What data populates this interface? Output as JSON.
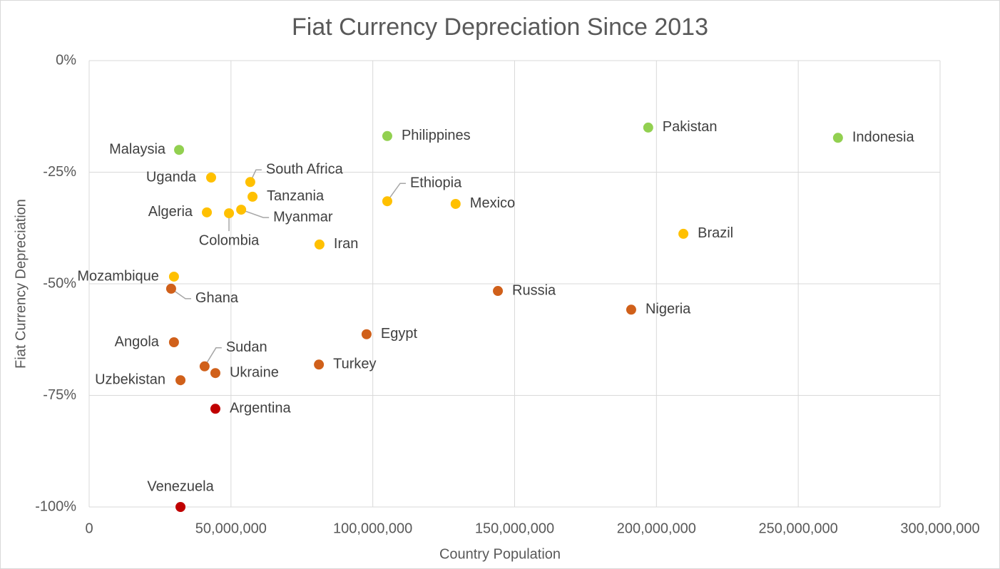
{
  "chart_data": {
    "type": "scatter",
    "title": "Fiat Currency Depreciation Since 2013",
    "x_label": "Country Population",
    "y_label": "Fiat  Currency  Depreciation",
    "labels": [
      "Malaysia",
      "Uganda",
      "South Africa",
      "Tanzania",
      "Algeria",
      "Colombia",
      "Myanmar",
      "Iran",
      "Philippines",
      "Ethiopia",
      "Mexico",
      "Pakistan",
      "Indonesia",
      "Brazil",
      "Mozambique",
      "Ghana",
      "Russia",
      "Nigeria",
      "Egypt",
      "Angola",
      "Sudan",
      "Ukraine",
      "Turkey",
      "Uzbekistan",
      "Argentina",
      "Venezuela"
    ],
    "x": [
      31700000,
      43000000,
      56800000,
      57600000,
      41500000,
      49300000,
      53600000,
      81200000,
      105100000,
      105100000,
      129200000,
      197100000,
      264000000,
      209500000,
      29900000,
      28900000,
      144100000,
      191100000,
      97800000,
      29900000,
      40700000,
      44500000,
      81000000,
      32200000,
      44500000,
      32200000
    ],
    "y": [
      -20.0,
      -26.2,
      -27.2,
      -30.5,
      -34.0,
      -34.2,
      -33.4,
      -41.2,
      -16.9,
      -31.5,
      -32.1,
      -15.0,
      -17.3,
      -38.8,
      -48.4,
      -51.1,
      -51.6,
      -55.8,
      -61.3,
      -63.1,
      -68.5,
      -70.0,
      -68.1,
      -71.6,
      -78.0,
      -100
    ],
    "colors": [
      "#92d050",
      "#ffc000",
      "#ffc000",
      "#ffc000",
      "#ffc000",
      "#ffc000",
      "#ffc000",
      "#ffc000",
      "#92d050",
      "#ffc000",
      "#ffc000",
      "#92d050",
      "#92d050",
      "#ffc000",
      "#ffc000",
      "#d0601a",
      "#d0601a",
      "#d0601a",
      "#d0601a",
      "#d0601a",
      "#d0601a",
      "#d0601a",
      "#d0601a",
      "#d0601a",
      "#c00000",
      "#c00000"
    ],
    "xlim": [
      0,
      300000000
    ],
    "xticks": [
      0,
      {
        "value": 50000000,
        "label": "50,000,000"
      },
      {
        "value": 100000000,
        "label": "100,000,000"
      },
      {
        "value": 150000000,
        "label": "150,000,000"
      },
      {
        "value": 200000000,
        "label": "200,000,000"
      },
      {
        "value": 250000000,
        "label": "250,000,000"
      },
      {
        "value": 300000000,
        "label": "300,000,000"
      }
    ],
    "ylim": [
      -100,
      0
    ],
    "yticks": [
      {
        "value": 0,
        "label": "0%"
      },
      {
        "value": -25,
        "label": "-25%"
      },
      {
        "value": -50,
        "label": "-50%"
      },
      {
        "value": -75,
        "label": "-75%"
      },
      {
        "value": -100,
        "label": "-100%"
      }
    ],
    "grid": true
  }
}
